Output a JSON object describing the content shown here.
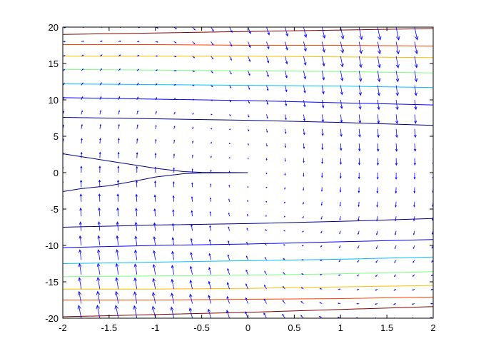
{
  "chart_data": {
    "type": "quiver-contour",
    "title": "",
    "xlabel": "",
    "ylabel": "",
    "xlim": [
      -2,
      2
    ],
    "ylim": [
      -20,
      20
    ],
    "x_ticks": [
      -2,
      -1.5,
      -1,
      -0.5,
      0,
      0.5,
      1,
      1.5,
      2
    ],
    "x_tick_labels": [
      "-2",
      "-1.5",
      "-1",
      "-0.5",
      "0",
      "0.5",
      "1",
      "1.5",
      "2"
    ],
    "y_ticks": [
      -20,
      -15,
      -10,
      -5,
      0,
      5,
      10,
      15,
      20
    ],
    "y_tick_labels": [
      "-20",
      "-15",
      "-10",
      "-5",
      "0",
      "5",
      "10",
      "15",
      "20"
    ],
    "grid": false,
    "quiver": {
      "x_count": 21,
      "y_count": 21,
      "color": "#0000ff"
    },
    "contours": [
      {
        "color": "#00007f",
        "points": [
          [
            -2,
            7.6
          ],
          [
            -1,
            7.4
          ],
          [
            0,
            7.2
          ],
          [
            1,
            6.9
          ],
          [
            2,
            6.5
          ]
        ]
      },
      {
        "color": "#00007f",
        "points": [
          [
            -2,
            -7.5
          ],
          [
            -1,
            -7.2
          ],
          [
            0,
            -7.0
          ],
          [
            1,
            -6.7
          ],
          [
            2,
            -6.3
          ]
        ]
      },
      {
        "color": "#00007f",
        "points": [
          [
            -2,
            2.6
          ],
          [
            -1.8,
            2.2
          ],
          [
            -1.5,
            1.6
          ],
          [
            -1.2,
            1.0
          ],
          [
            -1,
            0.6
          ],
          [
            -0.7,
            0.15
          ],
          [
            -0.5,
            0.04
          ],
          [
            0,
            0
          ]
        ]
      },
      {
        "color": "#00007f",
        "points": [
          [
            -2,
            -2.6
          ],
          [
            -1.8,
            -2.2
          ],
          [
            -1.5,
            -1.8
          ],
          [
            -1.2,
            -1.1
          ],
          [
            -1,
            -0.6
          ],
          [
            -0.7,
            -0.15
          ],
          [
            -0.5,
            -0.04
          ],
          [
            0,
            0
          ]
        ]
      },
      {
        "color": "#0000ff",
        "points": [
          [
            -2,
            10.3
          ],
          [
            -1,
            10.1
          ],
          [
            0,
            9.9
          ],
          [
            1,
            9.6
          ],
          [
            2,
            9.3
          ]
        ]
      },
      {
        "color": "#0000ff",
        "points": [
          [
            -2,
            -10.3
          ],
          [
            -1,
            -10.0
          ],
          [
            0,
            -9.8
          ],
          [
            1,
            -9.5
          ],
          [
            2,
            -9.2
          ]
        ]
      },
      {
        "color": "#00bfff",
        "points": [
          [
            -2,
            12.2
          ],
          [
            -1,
            12.1
          ],
          [
            0,
            12.0
          ],
          [
            1,
            11.9
          ],
          [
            2,
            11.7
          ]
        ]
      },
      {
        "color": "#00bfff",
        "points": [
          [
            -2,
            -12.5
          ],
          [
            -1,
            -12.3
          ],
          [
            0,
            -12.1
          ],
          [
            1,
            -11.9
          ],
          [
            2,
            -11.6
          ]
        ]
      },
      {
        "color": "#7fff7f",
        "points": [
          [
            -2,
            14.2
          ],
          [
            -1,
            14.1
          ],
          [
            0,
            14.0
          ],
          [
            1,
            13.9
          ],
          [
            2,
            13.7
          ]
        ]
      },
      {
        "color": "#7fff7f",
        "points": [
          [
            -2,
            -14.3
          ],
          [
            -1,
            -14.2
          ],
          [
            0,
            -14.1
          ],
          [
            1,
            -13.9
          ],
          [
            2,
            -13.6
          ]
        ]
      },
      {
        "color": "#ffbf00",
        "points": [
          [
            -2,
            16.0
          ],
          [
            -1,
            16.0
          ],
          [
            0,
            16.0
          ],
          [
            1,
            15.9
          ],
          [
            2,
            15.8
          ]
        ]
      },
      {
        "color": "#ffbf00",
        "points": [
          [
            -2,
            -16.0
          ],
          [
            -1,
            -16.0
          ],
          [
            0,
            -15.9
          ],
          [
            1,
            -15.7
          ],
          [
            2,
            -15.5
          ]
        ]
      },
      {
        "color": "#ff4000",
        "points": [
          [
            -2,
            17.6
          ],
          [
            -1,
            17.6
          ],
          [
            0,
            17.5
          ],
          [
            1,
            17.5
          ],
          [
            2,
            17.4
          ]
        ]
      },
      {
        "color": "#ff4000",
        "points": [
          [
            -2,
            -17.5
          ],
          [
            -1,
            -17.5
          ],
          [
            0,
            -17.4
          ],
          [
            1,
            -17.3
          ],
          [
            2,
            -17.1
          ]
        ]
      },
      {
        "color": "#7f0000",
        "points": [
          [
            -2,
            19.0
          ],
          [
            -1,
            19.2
          ],
          [
            0,
            19.4
          ],
          [
            1,
            19.6
          ],
          [
            2,
            19.8
          ]
        ]
      },
      {
        "color": "#7f0000",
        "points": [
          [
            -2,
            -19.8
          ],
          [
            -1,
            -19.5
          ],
          [
            0,
            -19.2
          ],
          [
            1,
            -18.8
          ],
          [
            2,
            -18.4
          ]
        ]
      }
    ]
  }
}
